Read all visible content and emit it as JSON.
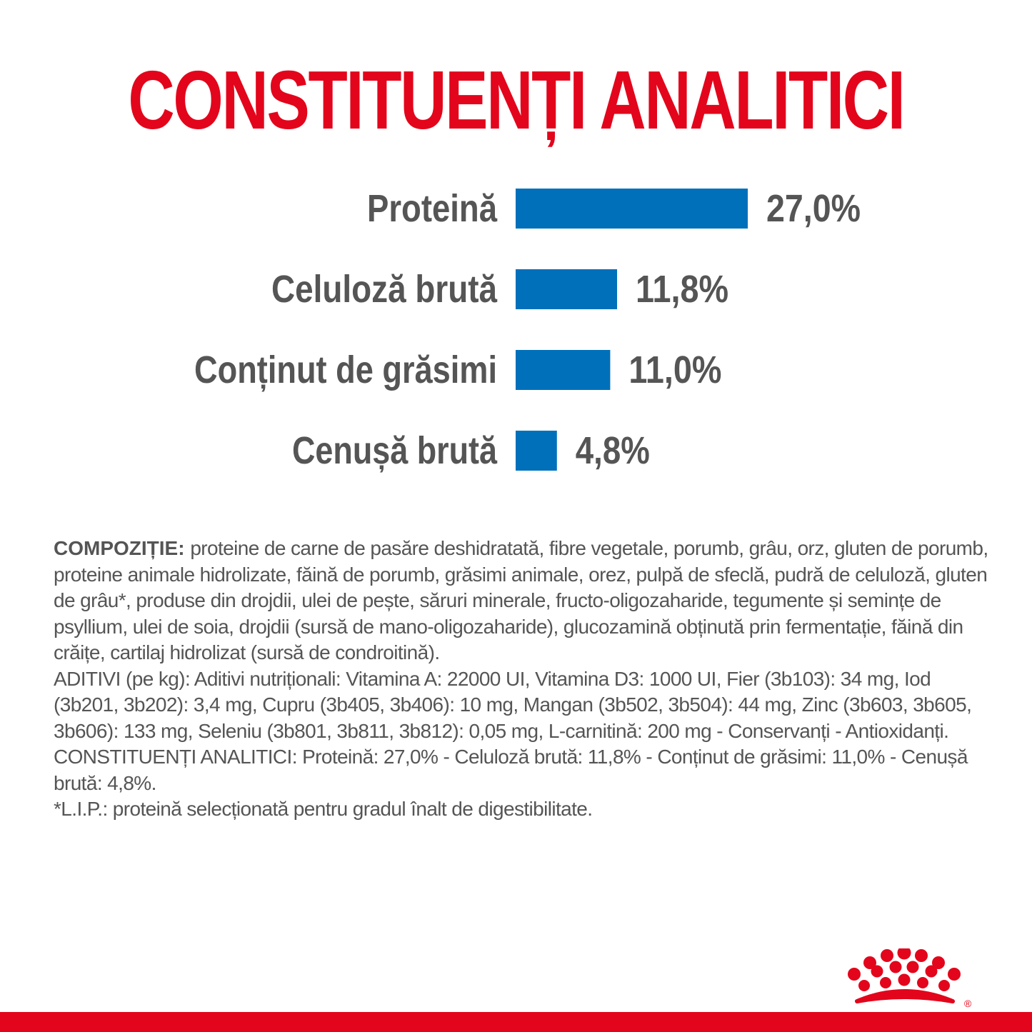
{
  "title": "CONSTITUENȚI ANALITICI",
  "chart_data": {
    "type": "bar",
    "orientation": "horizontal",
    "categories": [
      "Proteină",
      "Celuloză brută",
      "Conținut de grăsimi",
      "Cenușă brută"
    ],
    "values": [
      27.0,
      11.8,
      11.0,
      4.8
    ],
    "value_labels": [
      "27,0%",
      "11,8%",
      "11,0%",
      "4,8%"
    ],
    "unit": "%",
    "bar_color": "#0070bb",
    "label_color": "#555555",
    "xlim": [
      0,
      27.0
    ],
    "grid": false
  },
  "composition": {
    "heading": "COMPOZIȚIE:",
    "text": "proteine de carne de pasăre deshidratată, fibre vegetale, porumb, grâu, orz, gluten de porumb, proteine animale hidrolizate, făină de porumb, grăsimi animale, orez, pulpă de sfeclă, pudră de celuloză, gluten de grâu*, produse din drojdii, ulei de pește, săruri minerale, fructo-oligozaharide, tegumente și semințe de psyllium, ulei de soia, drojdii (sursă de mano-oligozaharide), glucozamină obținută prin fermentație, făină din crăițe, cartilaj hidrolizat (sursă de condroitină).",
    "additives": "ADITIVI (pe kg): Aditivi nutriționali: Vitamina A: 22000 UI, Vitamina D3: 1000 UI, Fier (3b103): 34 mg, Iod (3b201, 3b202): 3,4 mg, Cupru (3b405, 3b406): 10 mg, Mangan (3b502, 3b504): 44 mg, Zinc (3b603, 3b605, 3b606): 133 mg, Seleniu (3b801, 3b811, 3b812): 0,05 mg, L-carnitină: 200 mg - Conservanți - Antioxidanți.",
    "analytical": "CONSTITUENȚI ANALITICI: Proteină: 27,0% - Celuloză brută: 11,8% - Conținut de grăsimi: 11,0% - Cenușă brută: 4,8%.",
    "footnote": "*L.I.P.: proteină selecționată pentru gradul înalt de digestibilitate."
  },
  "logo": {
    "color": "#e3051b",
    "mark": "®"
  },
  "footer": {
    "color": "#e3051b"
  }
}
